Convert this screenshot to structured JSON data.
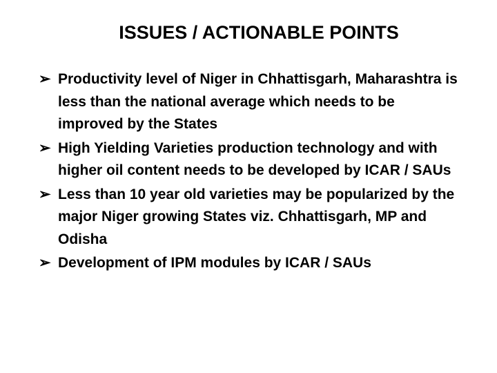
{
  "title": "ISSUES / ACTIONABLE POINTS",
  "bullet_marker": "➢",
  "items": [
    "Productivity level of Niger in Chhattisgarh, Maharashtra is less than the national average which  needs to be  improved by the States",
    "High Yielding Varieties production technology and with higher oil content needs to be developed by ICAR / SAUs",
    "Less than 10 year old varieties may be popularized by the major Niger growing States viz. Chhattisgarh, MP and Odisha",
    "Development of IPM modules by ICAR / SAUs"
  ],
  "colors": {
    "background": "#ffffff",
    "text": "#000000"
  },
  "typography": {
    "title_fontsize": 27,
    "body_fontsize": 21,
    "font_weight": "bold",
    "font_family": "Arial"
  }
}
